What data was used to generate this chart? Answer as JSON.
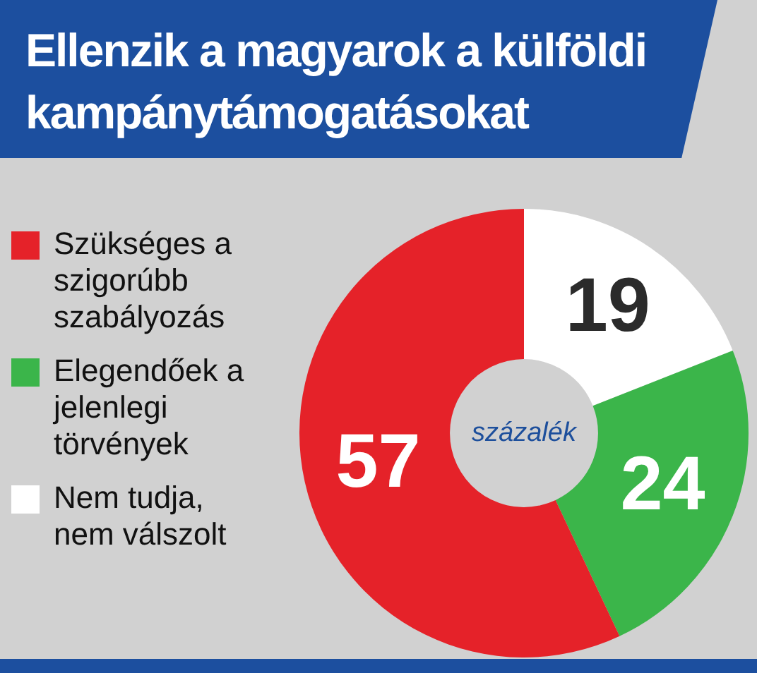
{
  "chart_data": {
    "type": "donut",
    "title": "Ellenzik a magyarok a külföldi kampánytámogatásokat",
    "categories": [
      "Szükséges a szigorúbb szabályozás",
      "Elegendőek a jelenlegi törvények",
      "Nem tudja, nem válszolt"
    ],
    "values": [
      57,
      24,
      19
    ],
    "colors": [
      "#e52229",
      "#3bb54a",
      "#ffffff"
    ],
    "annotations": [
      "százalék"
    ],
    "data_labels": true,
    "legend": "left"
  }
}
